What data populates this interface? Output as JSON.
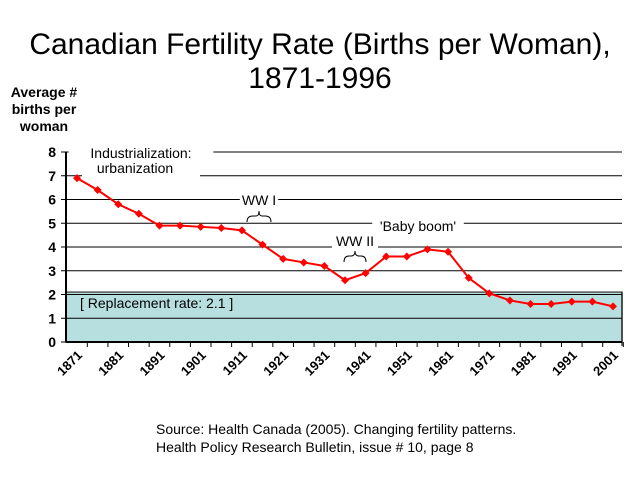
{
  "chart_data": {
    "type": "line",
    "title": "Canadian Fertility Rate (Births per Woman), 1871-1996",
    "ylabel": "Average # births per woman",
    "xlabel": "",
    "ylim": [
      0,
      8
    ],
    "yticks": [
      "0",
      "1",
      "2",
      "3",
      "4",
      "5",
      "6",
      "7",
      "8"
    ],
    "xticks": [
      "1871",
      "1881",
      "1891",
      "1901",
      "1911",
      "1921",
      "1931",
      "1941",
      "1951",
      "1961",
      "1971",
      "1981",
      "1991",
      "2001"
    ],
    "grid": true,
    "x": [
      1871,
      1876,
      1881,
      1886,
      1891,
      1896,
      1901,
      1906,
      1911,
      1916,
      1921,
      1926,
      1931,
      1936,
      1941,
      1946,
      1951,
      1956,
      1961,
      1966,
      1971,
      1976,
      1981,
      1986,
      1991,
      1996,
      2001
    ],
    "series": [
      {
        "values": [
          6.9,
          6.4,
          5.8,
          5.4,
          4.9,
          4.9,
          4.85,
          4.8,
          4.7,
          4.1,
          3.5,
          3.35,
          3.2,
          2.6,
          2.9,
          3.6,
          3.6,
          3.9,
          3.8,
          2.7,
          2.05,
          1.75,
          1.6,
          1.6,
          1.7,
          1.7,
          1.5
        ],
        "color": "#ff0000"
      }
    ],
    "replacement_band": {
      "value": 2.1,
      "label": "[ Replacement rate: 2.1 ]",
      "color": "#b8dfe0"
    },
    "annotations": [
      {
        "text": "Industrialization;",
        "text2": "urbanization"
      },
      {
        "text": "WW I"
      },
      {
        "text": "WW II"
      },
      {
        "text": "'Baby boom'"
      }
    ]
  },
  "source": {
    "line1": "Source: Health Canada (2005). Changing fertility patterns.",
    "line2": "Health Policy Research Bulletin, issue # 10, page 8"
  }
}
